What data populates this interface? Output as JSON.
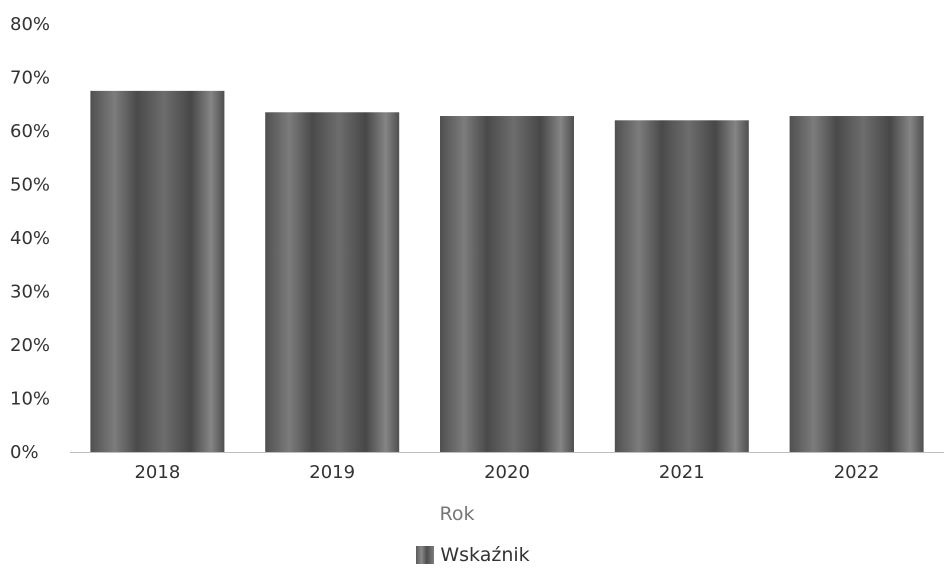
{
  "chart_data": {
    "type": "bar",
    "categories": [
      "2018",
      "2019",
      "2020",
      "2021",
      "2022"
    ],
    "series": [
      {
        "name": "Wskaźnik",
        "values": [
          67.5,
          63.5,
          62.8,
          62,
          62.8
        ]
      }
    ],
    "xlabel": "Rok",
    "ylabel": "",
    "ylim": [
      0,
      80
    ],
    "y_ticks": [
      "0%",
      "10%",
      "20%",
      "30%",
      "40%",
      "50%",
      "60%",
      "70%",
      "80%"
    ],
    "y_tick_values": [
      0,
      10,
      20,
      30,
      40,
      50,
      60,
      70,
      80
    ],
    "grid": false,
    "legend_position": "bottom",
    "bar_color": "#5f5f5f"
  }
}
